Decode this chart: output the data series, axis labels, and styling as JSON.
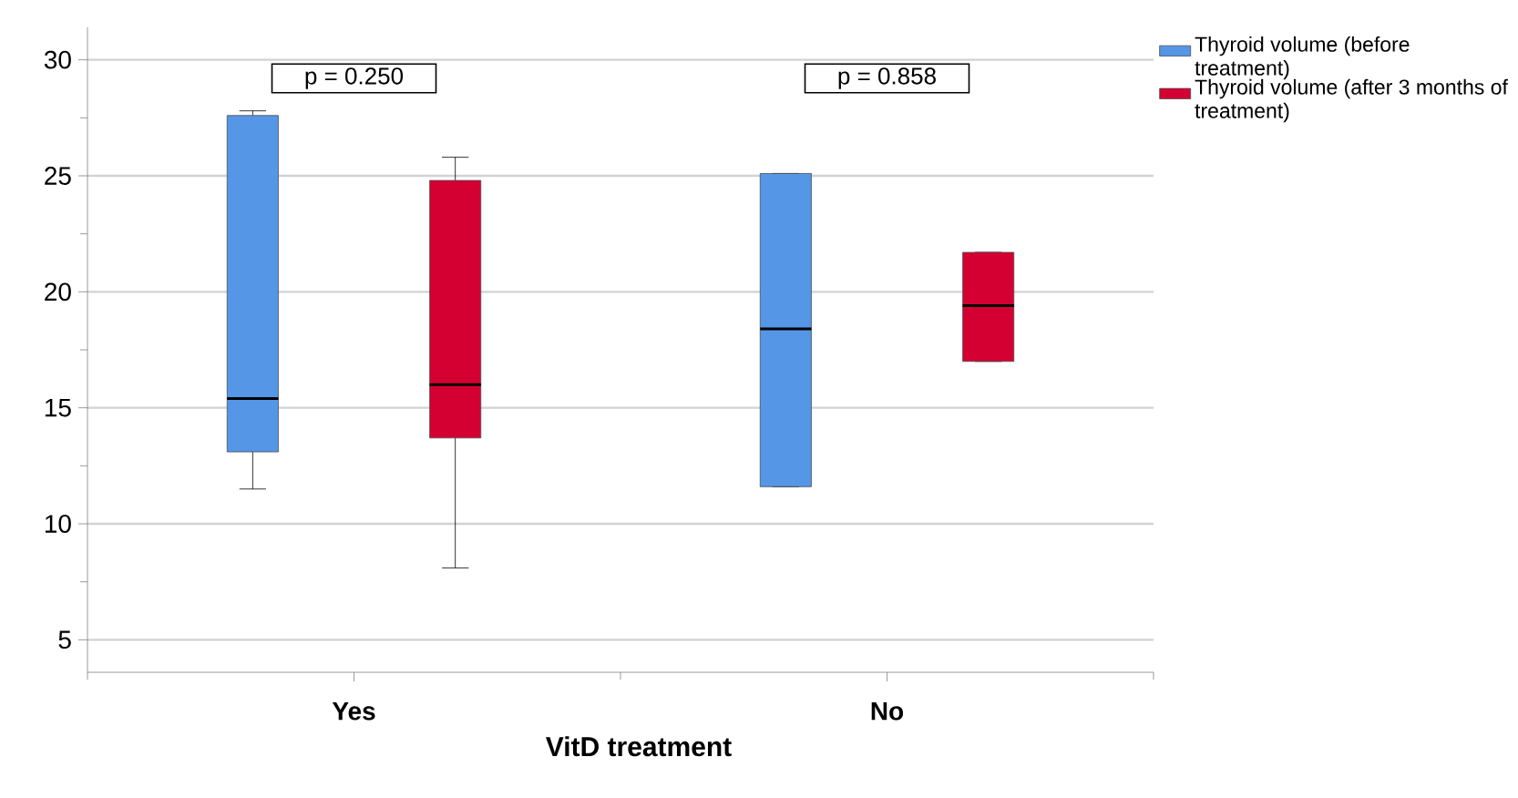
{
  "chart_data": {
    "type": "box",
    "categories": [
      "Yes",
      "No"
    ],
    "xlabel": "VitD treatment",
    "ylim": [
      3.6,
      31.4
    ],
    "yticks": [
      5,
      {
        "value": 7.5,
        "label": null
      },
      10,
      {
        "value": 12.5,
        "label": null
      },
      15,
      {
        "value": 17.5,
        "label": null
      },
      20,
      {
        "value": 22.5,
        "label": null
      },
      25,
      {
        "value": 27.5,
        "label": null
      },
      30
    ],
    "grid": "y",
    "legend": "top right",
    "annotations": [
      "p = 0.250",
      "p = 0.858"
    ],
    "series": [
      {
        "name": "Thyroid volume (before treatment)",
        "color": "#5596e6",
        "boxes": [
          {
            "low": 11.5,
            "q1": 13.1,
            "median": 15.4,
            "q3": 27.6,
            "high": 27.8
          },
          {
            "low": 11.6,
            "q1": 11.6,
            "median": 18.4,
            "q3": 25.1,
            "high": 25.1
          }
        ]
      },
      {
        "name": "Thyroid volume (after 3 months of treatment)",
        "color": "#d50032",
        "boxes": [
          {
            "low": 8.1,
            "q1": 13.7,
            "median": 16.0,
            "q3": 24.8,
            "high": 25.8
          },
          {
            "low": 17.0,
            "q1": 17.0,
            "median": 19.4,
            "q3": 21.7,
            "high": 21.7
          }
        ]
      }
    ]
  }
}
